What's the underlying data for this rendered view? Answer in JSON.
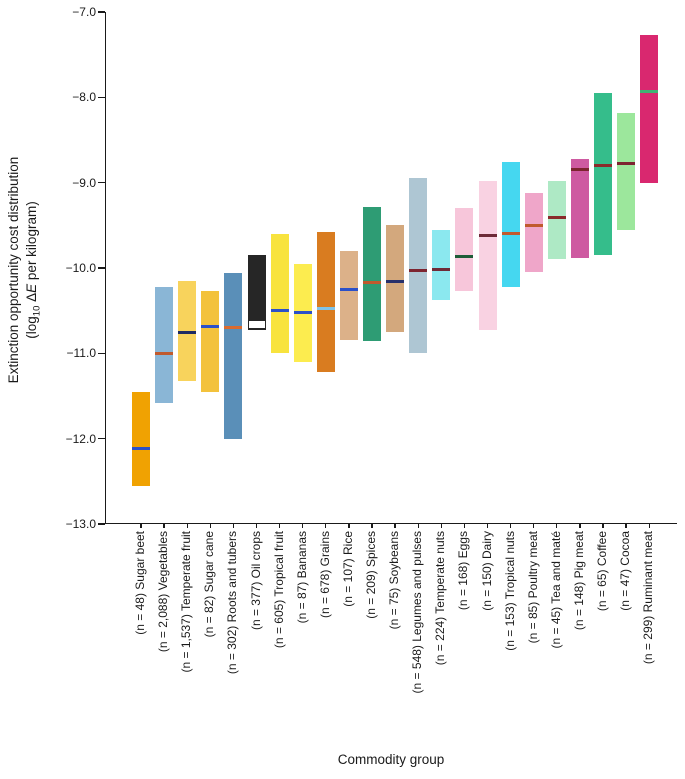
{
  "figure": {
    "xlabel": "Commodity group",
    "ylabel_line1": "Extinction opportunity cost distribution",
    "ylabel_line2": {
      "prefix": "(log",
      "sub": "10",
      "mid": " Δ",
      "italic": "E",
      "suffix": " per kilogram)"
    }
  },
  "chart_data": {
    "type": "bar",
    "subtype": "floating range bars with median lines",
    "title": "",
    "xlabel": "Commodity group",
    "ylabel": "Extinction opportunity cost distribution (log10 ΔE per kilogram)",
    "ylim": [
      -13.0,
      -7.0
    ],
    "yticks": [
      -7.0,
      -8.0,
      -9.0,
      -10.0,
      -11.0,
      -12.0,
      -13.0
    ],
    "ytick_labels": [
      "−7.0",
      "−8.0",
      "−9.0",
      "−10.0",
      "−11.0",
      "−12.0",
      "−13.0"
    ],
    "grid": false,
    "legend": false,
    "background": "#ffffff",
    "axis_color": "#1a1a1a",
    "bars": [
      {
        "label": "(n = 48) Sugar beet",
        "n": "48",
        "commodity": "Sugar beet",
        "low": -12.55,
        "high": -11.45,
        "median": -12.12,
        "color": "#F0A202",
        "median_color": "#2B50C8"
      },
      {
        "label": "(n = 2,088) Vegetables",
        "n": "2,088",
        "commodity": "Vegetables",
        "low": -11.58,
        "high": -10.22,
        "median": -11.0,
        "color": "#8AB6D6",
        "median_color": "#C05A2E"
      },
      {
        "label": "(n = 1,537) Temperate fruit",
        "n": "1,537",
        "commodity": "Temperate fruit",
        "low": -11.33,
        "high": -10.15,
        "median": -10.76,
        "color": "#F8D35C",
        "median_color": "#1E2B63"
      },
      {
        "label": "(n = 82) Sugar cane",
        "n": "82",
        "commodity": "Sugar cane",
        "low": -11.45,
        "high": -10.27,
        "median": -10.68,
        "color": "#F3C23C",
        "median_color": "#2B50C8"
      },
      {
        "label": "(n = 302) Roots and tubers",
        "n": "302",
        "commodity": "Roots and tubers",
        "low": -12.0,
        "high": -10.06,
        "median": -10.7,
        "color": "#5A8FB8",
        "median_color": "#D96B2F"
      },
      {
        "label": "(n = 377) Oil crops",
        "n": "377",
        "commodity": "Oil crops",
        "low": -10.73,
        "high": -9.85,
        "median": -10.66,
        "color": "#262626",
        "median_color": "#FFFFFF",
        "median_height": 9,
        "median_border": "#262626"
      },
      {
        "label": "(n = 605) Tropical fruit",
        "n": "605",
        "commodity": "Tropical fruit",
        "low": -11.0,
        "high": -9.6,
        "median": -10.5,
        "color": "#F8E33E",
        "median_color": "#2B50C8"
      },
      {
        "label": "(n = 87) Bananas",
        "n": "87",
        "commodity": "Bananas",
        "low": -11.1,
        "high": -9.95,
        "median": -10.52,
        "color": "#FCEC4F",
        "median_color": "#2B50C8"
      },
      {
        "label": "(n = 678) Grains",
        "n": "678",
        "commodity": "Grains",
        "low": -11.22,
        "high": -9.58,
        "median": -10.48,
        "color": "#D97C20",
        "median_color": "#7FC3E8"
      },
      {
        "label": "(n = 107) Rice",
        "n": "107",
        "commodity": "Rice",
        "low": -10.84,
        "high": -9.8,
        "median": -10.25,
        "color": "#DCB189",
        "median_color": "#2B50C8"
      },
      {
        "label": "(n = 209) Spices",
        "n": "209",
        "commodity": "Spices",
        "low": -10.85,
        "high": -9.28,
        "median": -10.17,
        "color": "#2E9C74",
        "median_color": "#C05A2E"
      },
      {
        "label": "(n = 75) Soybeans",
        "n": "75",
        "commodity": "Soybeans",
        "low": -10.75,
        "high": -9.5,
        "median": -10.16,
        "color": "#D3A87D",
        "median_color": "#28306B"
      },
      {
        "label": "(n = 548) Legumes and pulses",
        "n": "548",
        "commodity": "Legumes and pulses",
        "low": -11.0,
        "high": -8.95,
        "median": -10.03,
        "color": "#AEC6D3",
        "median_color": "#7D2430"
      },
      {
        "label": "(n = 224) Temperate nuts",
        "n": "224",
        "commodity": "Temperate nuts",
        "low": -10.37,
        "high": -9.55,
        "median": -10.02,
        "color": "#8BE8EF",
        "median_color": "#6E2B38"
      },
      {
        "label": "(n = 168) Eggs",
        "n": "168",
        "commodity": "Eggs",
        "low": -10.27,
        "high": -9.3,
        "median": -9.86,
        "color": "#F7C6DA",
        "median_color": "#1F5C38"
      },
      {
        "label": "(n = 150) Dairy",
        "n": "150",
        "commodity": "Dairy",
        "low": -10.73,
        "high": -8.98,
        "median": -9.62,
        "color": "#F9D2E2",
        "median_color": "#6E2B38"
      },
      {
        "label": "(n = 153) Tropical nuts",
        "n": "153",
        "commodity": "Tropical nuts",
        "low": -10.22,
        "high": -8.76,
        "median": -9.6,
        "color": "#45D7F0",
        "median_color": "#C05A2E"
      },
      {
        "label": "(n = 85) Poultry meat",
        "n": "85",
        "commodity": "Poultry meat",
        "low": -10.05,
        "high": -9.12,
        "median": -9.5,
        "color": "#EFA6C9",
        "median_color": "#C05A2E"
      },
      {
        "label": "(n = 45) Tea and maté",
        "n": "45",
        "commodity": "Tea and maté",
        "low": -9.9,
        "high": -8.98,
        "median": -9.41,
        "color": "#AEE9C5",
        "median_color": "#8A2B2B"
      },
      {
        "label": "(n = 148) Pig meat",
        "n": "148",
        "commodity": "Pig meat",
        "low": -9.88,
        "high": -8.72,
        "median": -8.85,
        "color": "#CE5AA1",
        "median_color": "#7D2430"
      },
      {
        "label": "(n = 65) Coffee",
        "n": "65",
        "commodity": "Coffee",
        "low": -9.85,
        "high": -7.95,
        "median": -8.8,
        "color": "#35BD8B",
        "median_color": "#8A2B2B"
      },
      {
        "label": "(n = 47) Cocoa",
        "n": "47",
        "commodity": "Cocoa",
        "low": -9.55,
        "high": -8.18,
        "median": -8.78,
        "color": "#9CE79C",
        "median_color": "#7D2430"
      },
      {
        "label": "(n = 299) Ruminant meat",
        "n": "299",
        "commodity": "Ruminant meat",
        "low": -9.0,
        "high": -7.27,
        "median": -7.93,
        "color": "#D9286F",
        "median_color": "#3FB273"
      }
    ]
  }
}
